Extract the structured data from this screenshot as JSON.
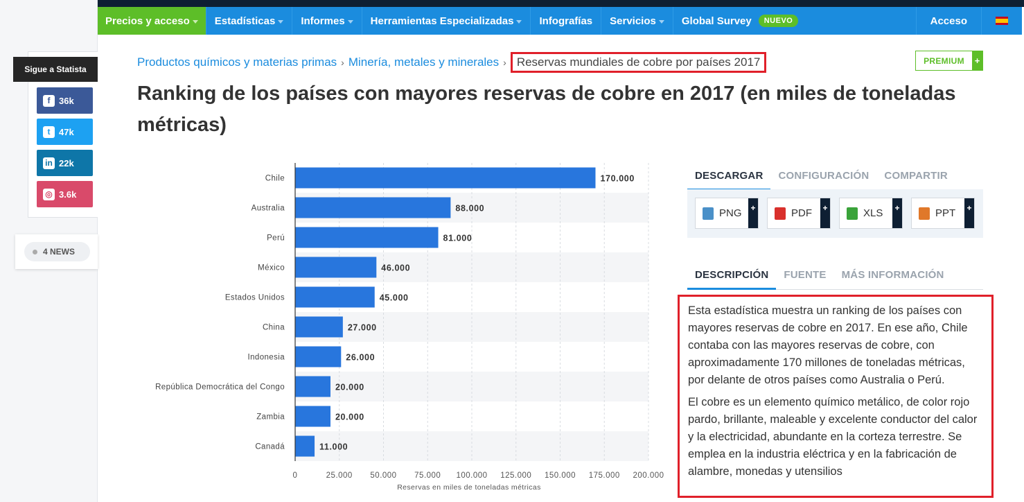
{
  "nav": {
    "items": [
      {
        "label": "Precios y acceso",
        "caret": true,
        "active": true
      },
      {
        "label": "Estadísticas",
        "caret": true
      },
      {
        "label": "Informes",
        "caret": true
      },
      {
        "label": "Herramientas Especializadas",
        "caret": true
      },
      {
        "label": "Infografías",
        "caret": false
      },
      {
        "label": "Servicios",
        "caret": true
      },
      {
        "label": "Global Survey",
        "caret": false
      }
    ],
    "new_badge": "NUEVO",
    "login": "Acceso",
    "flag_icon": "spain-flag-icon"
  },
  "social": {
    "follow_label": "Sigue a Statista",
    "buttons": [
      {
        "icon": "facebook-icon",
        "count": "36k",
        "color": "#3b5998"
      },
      {
        "icon": "twitter-icon",
        "count": "47k",
        "color": "#1da1f2"
      },
      {
        "icon": "linkedin-icon",
        "count": "22k",
        "color": "#0e76a8"
      },
      {
        "icon": "instagram-icon",
        "count": "3.6k",
        "color": "#d94a6a"
      }
    ],
    "news_label": "4 NEWS"
  },
  "breadcrumb": {
    "items": [
      "Productos químicos y materias primas",
      "Minería, metales y minerales"
    ],
    "current": "Reservas mundiales de cobre por países 2017"
  },
  "premium_label": "PREMIUM",
  "title": "Ranking de los países con mayores reservas de cobre en 2017 (en miles de toneladas métricas)",
  "chart_data": {
    "type": "bar",
    "orientation": "horizontal",
    "categories": [
      "Chile",
      "Australia",
      "Perú",
      "México",
      "Estados Unidos",
      "China",
      "Indonesia",
      "República Democrática del Congo",
      "Zambia",
      "Canadá"
    ],
    "values": [
      170000,
      88000,
      81000,
      46000,
      45000,
      27000,
      26000,
      20000,
      20000,
      11000
    ],
    "data_labels": [
      "170.000",
      "88.000",
      "81.000",
      "46.000",
      "45.000",
      "27.000",
      "26.000",
      "20.000",
      "20.000",
      "11.000"
    ],
    "xlabel": "Reservas en miles de toneladas métricas",
    "xlim": [
      0,
      200000
    ],
    "xticks": [
      0,
      25000,
      50000,
      75000,
      100000,
      125000,
      150000,
      175000,
      200000
    ],
    "xtick_labels": [
      "0",
      "25.000",
      "50.000",
      "75.000",
      "100.000",
      "125.000",
      "150.000",
      "175.000",
      "200.000"
    ],
    "bar_color": "#2876dd",
    "grid": true
  },
  "download": {
    "tabs": [
      "DESCARGAR",
      "CONFIGURACIÓN",
      "COMPARTIR"
    ],
    "buttons": [
      {
        "label": "PNG",
        "icon": "png-file-icon",
        "color": "#4a90c8"
      },
      {
        "label": "PDF",
        "icon": "pdf-file-icon",
        "color": "#d9302c"
      },
      {
        "label": "XLS",
        "icon": "xls-file-icon",
        "color": "#3aa33a"
      },
      {
        "label": "PPT",
        "icon": "ppt-file-icon",
        "color": "#e0782a"
      }
    ]
  },
  "info": {
    "tabs": [
      "DESCRIPCIÓN",
      "FUENTE",
      "MÁS INFORMACIÓN"
    ],
    "paragraphs": [
      "Esta estadística muestra un ranking de los países con mayores reservas de cobre en 2017. En ese año, Chile contaba con las mayores reservas de cobre, con aproximadamente 170 millones de toneladas métricas, por delante de otros países como Australia o Perú.",
      "El cobre es un elemento químico metálico, de color rojo pardo, brillante, maleable y excelente conductor del calor y la electricidad, abundante en la corteza terrestre. Se emplea en la industria eléctrica y en la fabricación de alambre, monedas y utensilios"
    ]
  }
}
